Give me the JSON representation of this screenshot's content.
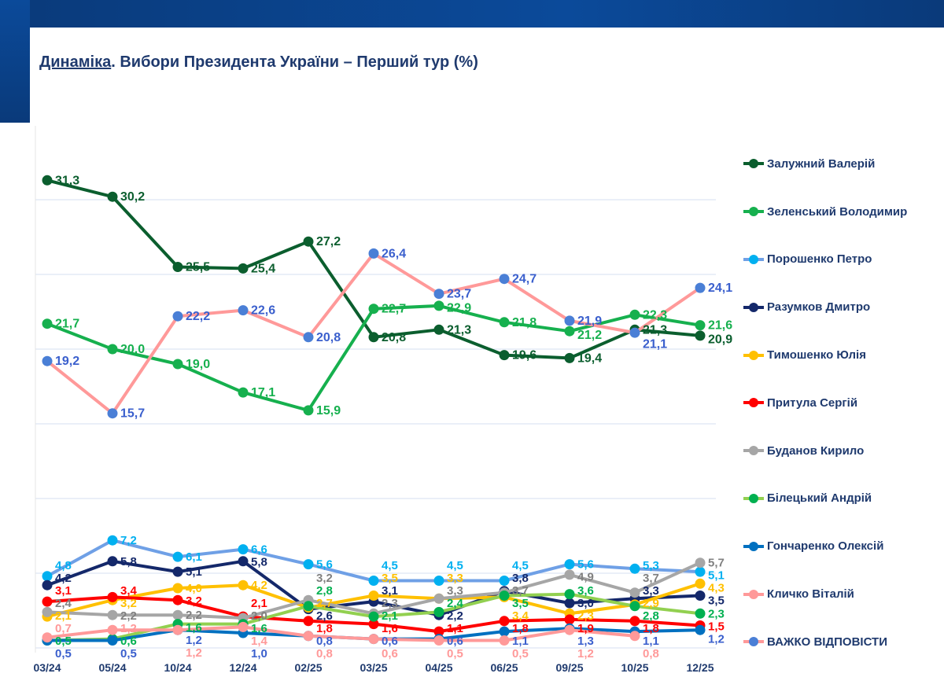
{
  "title": {
    "underlined": "Динаміка",
    "rest": ". Вибори Президента України – Перший тур (%)"
  },
  "chart_data": {
    "type": "line",
    "title": "Динаміка. Вибори Президента України – Перший тур (%)",
    "categories": [
      "03/24",
      "05/24",
      "10/24",
      "12/24",
      "02/25",
      "03/25",
      "04/25",
      "06/25",
      "09/25",
      "10/25",
      "12/25"
    ],
    "ylim": [
      0,
      35
    ],
    "grid": true,
    "legend_position": "right",
    "series": [
      {
        "name": "Залужний Валерій",
        "line": "#0b5e2e",
        "marker": "#0b5e2e",
        "label": "#0b5e2e",
        "values": [
          31.3,
          30.2,
          25.5,
          25.4,
          27.2,
          20.8,
          21.3,
          19.6,
          19.4,
          21.3,
          20.9
        ]
      },
      {
        "name": "Зеленський Володимир",
        "line": "#16b04e",
        "marker": "#16b04e",
        "label": "#16b04e",
        "values": [
          21.7,
          20.0,
          19.0,
          17.1,
          15.9,
          22.7,
          22.9,
          21.8,
          21.2,
          22.3,
          21.6
        ]
      },
      {
        "name": "Порошенко Петро",
        "line": "#6fa0e6",
        "marker": "#00b0f0",
        "label": "#00b0f0",
        "values": [
          4.8,
          7.2,
          6.1,
          6.6,
          5.6,
          4.5,
          4.5,
          4.5,
          5.6,
          5.3,
          5.1
        ]
      },
      {
        "name": "Разумков Дмитро",
        "line": "#14286a",
        "marker": "#14286a",
        "label": "#14286a",
        "values": [
          4.2,
          5.8,
          5.1,
          5.8,
          2.6,
          3.1,
          2.2,
          3.8,
          3.0,
          3.3,
          3.5
        ]
      },
      {
        "name": "Тимошенко Юлія",
        "line": "#ffc000",
        "marker": "#ffc000",
        "label": "#ffc000",
        "values": [
          2.1,
          3.2,
          4.0,
          4.2,
          2.7,
          3.5,
          3.3,
          3.4,
          2.3,
          2.9,
          4.3
        ]
      },
      {
        "name": "Притула Сергій",
        "line": "#ff0000",
        "marker": "#ff0000",
        "label": "#ff0000",
        "values": [
          3.1,
          3.4,
          3.2,
          2.1,
          1.8,
          1.6,
          1.1,
          1.8,
          1.9,
          1.8,
          1.5
        ]
      },
      {
        "name": "Буданов Кирило",
        "line": "#a6a6a6",
        "marker": "#a6a6a6",
        "label": "#808080",
        "values": [
          2.4,
          2.2,
          2.2,
          2.0,
          3.2,
          2.3,
          3.3,
          3.7,
          4.9,
          3.7,
          5.7
        ]
      },
      {
        "name": "Білецький Андрій",
        "line": "#92d050",
        "marker": "#00b050",
        "label": "#00b050",
        "values": [
          0.5,
          0.6,
          1.6,
          1.6,
          2.8,
          2.1,
          2.4,
          3.5,
          3.6,
          2.8,
          2.3
        ]
      },
      {
        "name": "Гончаренко Олексій",
        "line": "#0070c0",
        "marker": "#0070c0",
        "label": "#3a5fcd",
        "values": [
          0.5,
          0.5,
          1.2,
          1.0,
          0.8,
          0.6,
          0.6,
          1.1,
          1.3,
          1.1,
          1.2
        ]
      },
      {
        "name": "Кличко Віталій",
        "line": "#ff9999",
        "marker": "#ff9999",
        "label": "#ff9999",
        "values": [
          0.7,
          1.2,
          1.2,
          1.4,
          0.8,
          0.6,
          0.5,
          0.5,
          1.2,
          0.8,
          null
        ]
      },
      {
        "name": "ВАЖКО ВІДПОВІСТИ",
        "line": "#ff9999",
        "marker": "#4a7fd6",
        "label": "#3a5fcd",
        "values": [
          19.2,
          15.7,
          22.2,
          22.6,
          20.8,
          26.4,
          23.7,
          24.7,
          21.9,
          21.1,
          24.1
        ]
      }
    ]
  }
}
